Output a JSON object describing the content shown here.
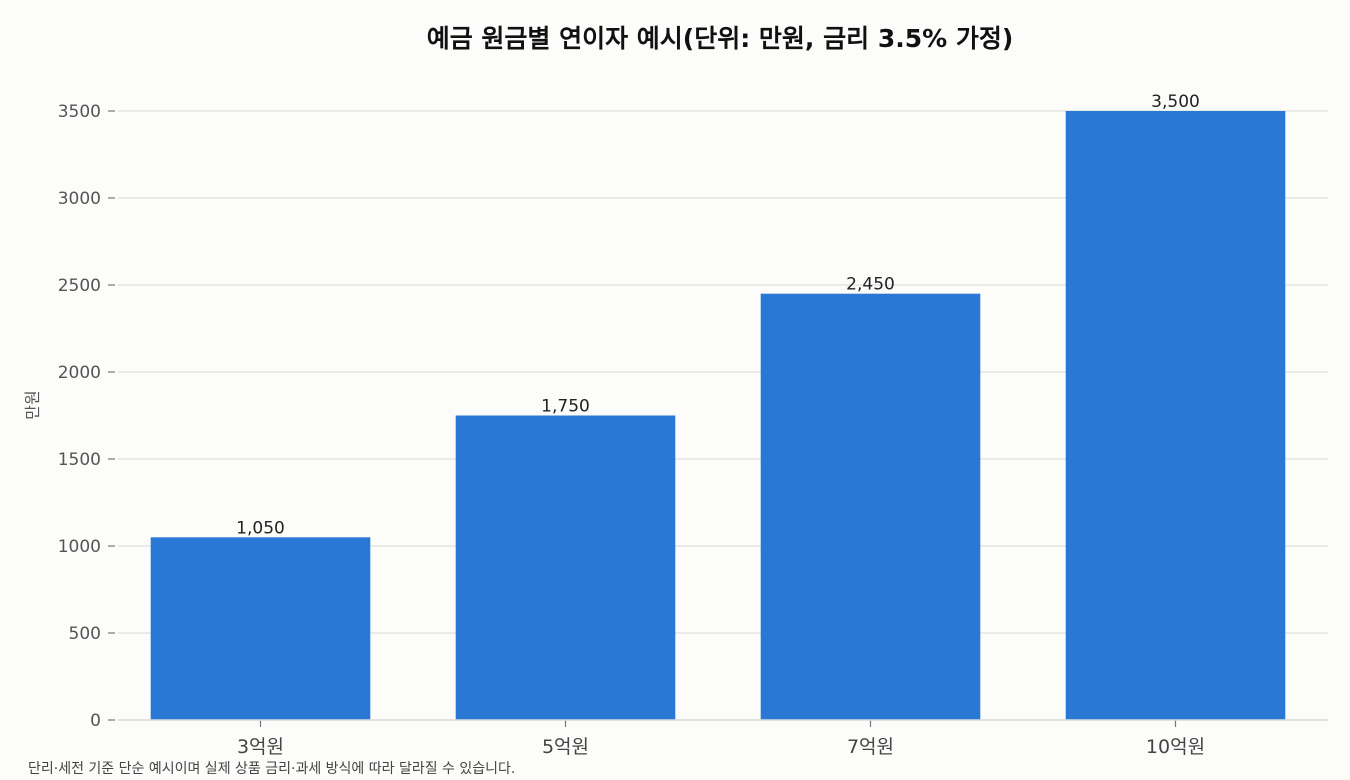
{
  "chart_data": {
    "type": "bar",
    "title": "예금 원금별 연이자 예시(단위: 만원, 금리 3.5% 가정)",
    "xlabel": "",
    "ylabel": "만원",
    "categories": [
      "3억원",
      "5억원",
      "7억원",
      "10억원"
    ],
    "values": [
      1050,
      1750,
      2450,
      3500
    ],
    "value_labels": [
      "1,050",
      "1,750",
      "2,450",
      "3,500"
    ],
    "ylim": [
      0,
      3500
    ],
    "yticks": [
      0,
      500,
      1000,
      1500,
      2000,
      2500,
      3000,
      3500
    ],
    "grid": "horizontal",
    "legend": "none",
    "bar_color": "#2a78d5",
    "grid_color": "#e3e3e3"
  },
  "footnote": "단리·세전 기준 단순 예시이며 실제 상품 금리·과세 방식에 따라 달라질 수 있습니다."
}
